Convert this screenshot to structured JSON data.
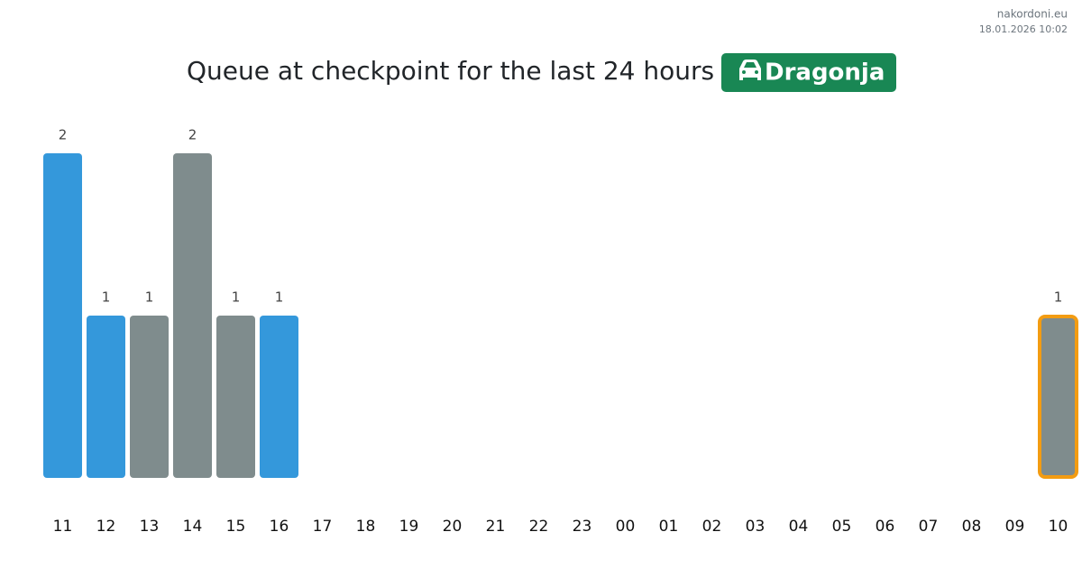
{
  "site": "nakordoni.eu",
  "timestamp": "18.01.2026 10:02",
  "chart_data": {
    "type": "bar",
    "title": "Queue at checkpoint for the last 24 hours",
    "checkpoint": "Dragonja",
    "categories": [
      "11",
      "12",
      "13",
      "14",
      "15",
      "16",
      "17",
      "18",
      "19",
      "20",
      "21",
      "22",
      "23",
      "00",
      "01",
      "02",
      "03",
      "04",
      "05",
      "06",
      "07",
      "08",
      "09",
      "10"
    ],
    "values": [
      2,
      1,
      1,
      2,
      1,
      1,
      null,
      null,
      null,
      null,
      null,
      null,
      null,
      null,
      null,
      null,
      null,
      null,
      null,
      null,
      null,
      null,
      null,
      1
    ],
    "colors": [
      "#3498db",
      "#3498db",
      "#7f8c8d",
      "#7f8c8d",
      "#7f8c8d",
      "#3498db",
      null,
      null,
      null,
      null,
      null,
      null,
      null,
      null,
      null,
      null,
      null,
      null,
      null,
      null,
      null,
      null,
      null,
      "#7f8c8d"
    ],
    "highlighted": "10",
    "highlight_color": "#f39c12",
    "ylim": [
      0,
      2
    ]
  }
}
